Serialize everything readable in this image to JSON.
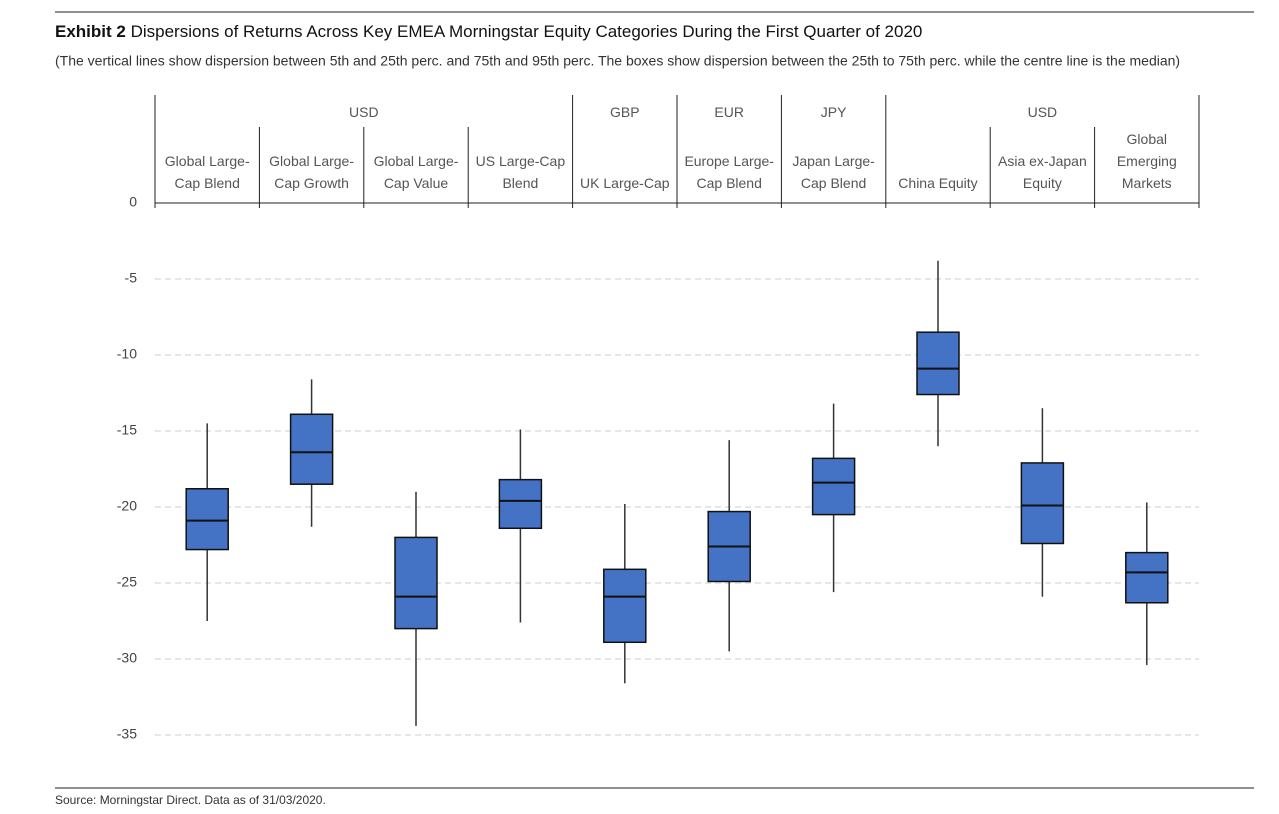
{
  "header": {
    "exhibit": "Exhibit 2",
    "title": "Dispersions of Returns Across Key EMEA Morningstar Equity Categories During the First Quarter of 2020",
    "subtitle": "(The vertical lines show dispersion between 5th and 25th perc. and 75th and 95th perc. The boxes show dispersion between the 25th to 75th perc. while the centre line is the median)"
  },
  "chart_data": {
    "type": "box",
    "category_groups": [
      {
        "label": "USD",
        "size": 4
      },
      {
        "label": "GBP",
        "size": 1
      },
      {
        "label": "EUR",
        "size": 1
      },
      {
        "label": "JPY",
        "size": 1
      },
      {
        "label": "USD",
        "size": 3
      }
    ],
    "categories": [
      "Global Large-Cap Blend",
      "Global Large-Cap Growth",
      "Global Large-Cap Value",
      "US Large-Cap Blend",
      "UK Large-Cap",
      "Europe Large-Cap Blend",
      "Japan Large-Cap Blend",
      "China Equity",
      "Asia ex-Japan Equity",
      "Global Emerging Markets"
    ],
    "high": [
      -14.5,
      -11.6,
      -19.0,
      -14.9,
      -19.8,
      -15.6,
      -13.2,
      -3.8,
      -13.5,
      -19.7
    ],
    "q3": [
      -18.8,
      -13.9,
      -22.0,
      -18.2,
      -24.1,
      -20.3,
      -16.8,
      -8.5,
      -17.1,
      -23.0
    ],
    "median": [
      -20.9,
      -16.4,
      -25.9,
      -19.6,
      -25.9,
      -22.6,
      -18.4,
      -10.9,
      -19.9,
      -24.3
    ],
    "q1": [
      -22.8,
      -18.5,
      -28.0,
      -21.4,
      -28.9,
      -24.9,
      -20.5,
      -12.6,
      -22.4,
      -26.3
    ],
    "low": [
      -27.5,
      -21.3,
      -34.4,
      -27.6,
      -31.6,
      -29.5,
      -25.6,
      -16.0,
      -25.9,
      -30.4
    ],
    "color": "#4472c4",
    "ylim": [
      -37,
      0
    ],
    "yticks": [
      0,
      -5,
      -10,
      -15,
      -20,
      -25,
      -30,
      -35
    ],
    "grid": true
  },
  "footer": {
    "source": "Source: Morningstar Direct. Data as of 31/03/2020."
  }
}
